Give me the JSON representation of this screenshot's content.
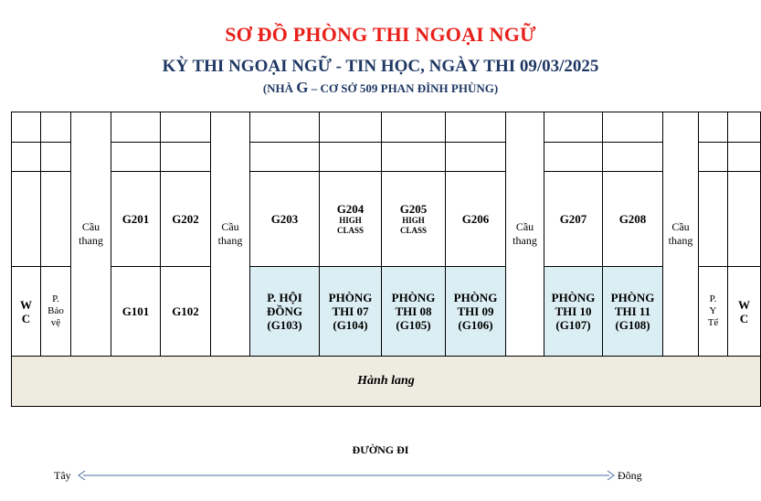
{
  "header": {
    "title": "SƠ ĐỒ PHÒNG THI NGOẠI NGỮ",
    "subtitle": "KỲ THI NGOẠI NGỮ - TIN HỌC, NGÀY THI 09/03/2025",
    "location_prefix": "(NHÀ ",
    "location_building": "G",
    "location_suffix": " – CƠ SỞ 509 PHAN ĐÌNH PHÙNG)"
  },
  "floor2": {
    "stairs_left": "Cầu thang",
    "g201": "G201",
    "g202": "G202",
    "stairs_mid1": "Cầu thang",
    "g203": "G203",
    "g204": "G204",
    "g204_note": "HIGH CLASS",
    "g205": "G205",
    "g205_note": "HIGH CLASS",
    "g206": "G206",
    "stairs_mid2": "Cầu thang",
    "g207": "G207",
    "g208": "G208",
    "stairs_right": "Cầu thang"
  },
  "floor1": {
    "wc_left": "W C",
    "security": "P. Bảo vệ",
    "g101": "G101",
    "g102": "G102",
    "council": "P. HỘI ĐỒNG (G103)",
    "room07": "PHÒNG THI 07 (G104)",
    "room08": "PHÒNG THI 08 (G105)",
    "room09": "PHÒNG THI 09 (G106)",
    "room10": "PHÒNG THI 10 (G107)",
    "room11": "PHÒNG THI 11 (G108)",
    "medical": "P. Y Tế",
    "wc_right": "W C"
  },
  "corridor": "Hành lang",
  "road": {
    "label": "ĐƯỜNG ĐI",
    "west": "Tây",
    "east": "Đông"
  },
  "colors": {
    "title": "#e8211b",
    "subtitle": "#1f3864",
    "exam_room_fill": "#dbeef4",
    "corridor_fill": "#eeece1",
    "arrow": "#4a6fa5"
  }
}
